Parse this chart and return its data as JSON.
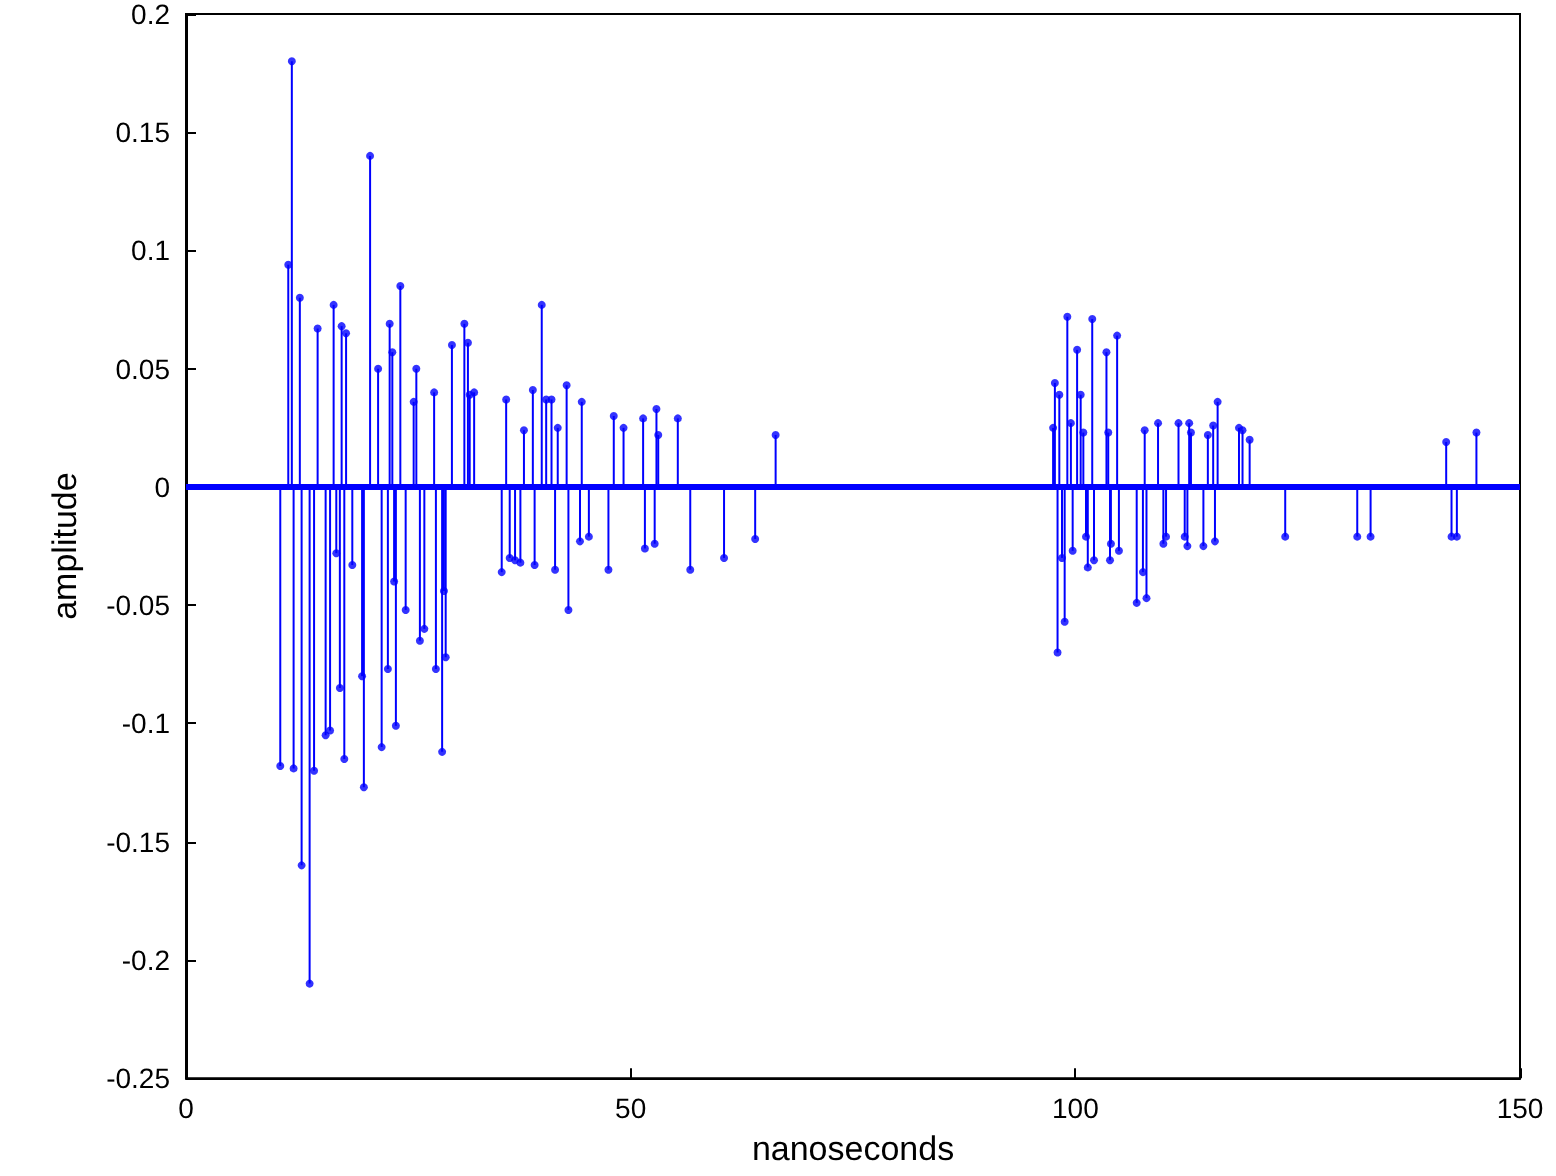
{
  "chart_data": {
    "type": "lollipop",
    "xlabel": "nanoseconds",
    "ylabel": "amplitude",
    "x": [
      10.6,
      11.5,
      11.9,
      12.1,
      12.8,
      13.0,
      13.9,
      14.4,
      14.8,
      15.7,
      16.2,
      16.6,
      16.9,
      17.3,
      17.5,
      17.8,
      18.0,
      18.7,
      19.8,
      20.0,
      20.7,
      21.6,
      22.0,
      22.7,
      22.9,
      23.2,
      23.4,
      23.6,
      24.1,
      24.7,
      25.6,
      25.9,
      26.3,
      26.8,
      27.9,
      28.1,
      28.8,
      29.0,
      29.2,
      29.9,
      31.3,
      31.7,
      31.9,
      32.4,
      35.5,
      36.0,
      36.4,
      37.0,
      37.6,
      38.0,
      39.0,
      39.2,
      40.0,
      40.5,
      41.1,
      41.5,
      41.8,
      42.8,
      43.0,
      44.3,
      44.5,
      45.3,
      47.5,
      48.1,
      49.2,
      51.4,
      51.6,
      52.7,
      52.9,
      53.1,
      55.3,
      56.7,
      60.5,
      64.0,
      66.3,
      97.5,
      97.7,
      98.0,
      98.2,
      98.5,
      98.8,
      99.1,
      99.5,
      99.7,
      100.2,
      100.6,
      100.9,
      101.2,
      101.4,
      101.9,
      102.1,
      103.5,
      103.7,
      103.9,
      104.0,
      104.7,
      104.9,
      106.9,
      107.6,
      107.8,
      108.0,
      109.3,
      109.9,
      110.2,
      111.6,
      112.3,
      112.6,
      112.8,
      113.0,
      114.4,
      114.9,
      115.5,
      115.7,
      116.0,
      118.4,
      118.8,
      119.6,
      123.6,
      131.7,
      133.2,
      141.7,
      142.3,
      142.9,
      145.1
    ],
    "values": [
      -0.118,
      0.094,
      0.18,
      -0.119,
      0.08,
      -0.16,
      -0.21,
      -0.12,
      0.067,
      -0.105,
      -0.103,
      0.077,
      -0.028,
      -0.085,
      0.068,
      -0.115,
      0.065,
      -0.033,
      -0.08,
      -0.127,
      0.14,
      0.05,
      -0.11,
      -0.077,
      0.069,
      0.057,
      -0.04,
      -0.101,
      0.085,
      -0.052,
      0.036,
      0.05,
      -0.065,
      -0.06,
      0.04,
      -0.077,
      -0.112,
      -0.044,
      -0.072,
      0.06,
      0.069,
      0.061,
      0.039,
      0.04,
      -0.036,
      0.037,
      -0.03,
      -0.031,
      -0.032,
      0.024,
      0.041,
      -0.033,
      0.077,
      0.037,
      0.037,
      -0.035,
      0.025,
      0.043,
      -0.052,
      -0.023,
      0.036,
      -0.021,
      -0.035,
      0.03,
      0.025,
      0.029,
      -0.026,
      -0.024,
      0.033,
      0.022,
      0.029,
      -0.035,
      -0.03,
      -0.022,
      0.022,
      0.025,
      0.044,
      -0.07,
      0.039,
      -0.03,
      -0.057,
      0.072,
      0.027,
      -0.027,
      0.058,
      0.039,
      0.023,
      -0.021,
      -0.034,
      0.071,
      -0.031,
      0.057,
      0.023,
      -0.031,
      -0.024,
      0.064,
      -0.027,
      -0.049,
      -0.036,
      0.024,
      -0.047,
      0.027,
      -0.024,
      -0.021,
      0.027,
      -0.021,
      -0.025,
      0.027,
      0.023,
      -0.025,
      0.022,
      0.026,
      -0.023,
      0.036,
      0.025,
      0.024,
      0.02,
      -0.021,
      -0.021,
      -0.021,
      0.019,
      -0.021,
      -0.021,
      0.023
    ],
    "color": "#0000ff",
    "marker": "circle",
    "grid": false,
    "ref_lines": [
      {
        "axis": "y",
        "value": 0,
        "color": "#0000ff"
      }
    ],
    "xlim": [
      0,
      150
    ],
    "xticks": [
      0,
      50,
      100,
      150
    ],
    "ylim": [
      -0.25,
      0.2
    ],
    "yticks": [
      -0.25,
      -0.2,
      -0.15,
      -0.1,
      -0.05,
      0,
      0.05,
      0.1,
      0.15,
      0.2
    ]
  }
}
